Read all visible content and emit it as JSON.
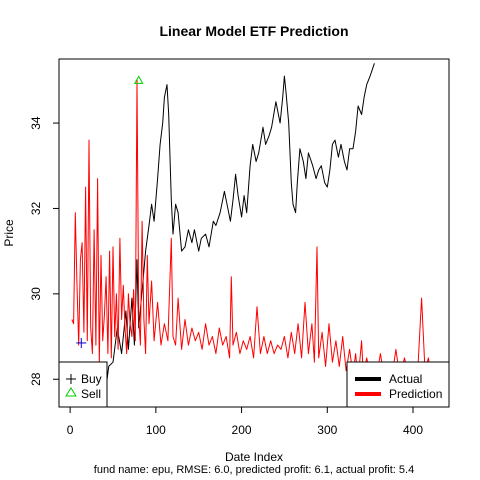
{
  "chart_data": {
    "type": "line",
    "title": "Linear Model ETF Prediction",
    "xlabel": "Date Index",
    "ylabel": "Price",
    "subtitle": "fund name: epu, RMSE: 6.0, predicted profit: 6.1, actual profit: 5.4",
    "xlim": [
      -13,
      442
    ],
    "ylim": [
      27.35,
      35.5
    ],
    "x_ticks": [
      0,
      100,
      200,
      300,
      400
    ],
    "y_ticks": [
      28,
      30,
      32,
      34
    ],
    "grid": false,
    "series": [
      {
        "name": "Actual",
        "color": "#000000",
        "points": [
          [
            0,
            27.4
          ],
          [
            10,
            27.6
          ],
          [
            20,
            27.5
          ],
          [
            25,
            27.45
          ],
          [
            30,
            27.4
          ],
          [
            35,
            27.9
          ],
          [
            40,
            27.5
          ],
          [
            45,
            28.3
          ],
          [
            50,
            28.4
          ],
          [
            55,
            29.2
          ],
          [
            60,
            28.6
          ],
          [
            65,
            29.6
          ],
          [
            68,
            28.7
          ],
          [
            72,
            29.9
          ],
          [
            75,
            28.8
          ],
          [
            78,
            30.8
          ],
          [
            80,
            29.2
          ],
          [
            85,
            30.3
          ],
          [
            88,
            31.0
          ],
          [
            92,
            31.6
          ],
          [
            95,
            32.1
          ],
          [
            98,
            31.7
          ],
          [
            102,
            32.7
          ],
          [
            105,
            33.5
          ],
          [
            108,
            34.0
          ],
          [
            110,
            34.6
          ],
          [
            113,
            34.9
          ],
          [
            115,
            34.2
          ],
          [
            118,
            32.2
          ],
          [
            120,
            31.4
          ],
          [
            123,
            32.1
          ],
          [
            126,
            31.9
          ],
          [
            130,
            31.0
          ],
          [
            134,
            31.1
          ],
          [
            138,
            31.5
          ],
          [
            142,
            31.2
          ],
          [
            145,
            31.5
          ],
          [
            150,
            31.0
          ],
          [
            153,
            31.3
          ],
          [
            158,
            31.4
          ],
          [
            162,
            31.1
          ],
          [
            167,
            31.7
          ],
          [
            170,
            31.6
          ],
          [
            175,
            31.9
          ],
          [
            180,
            32.4
          ],
          [
            183,
            32.1
          ],
          [
            187,
            31.7
          ],
          [
            190,
            32.2
          ],
          [
            193,
            32.8
          ],
          [
            196,
            32.3
          ],
          [
            200,
            31.8
          ],
          [
            203,
            32.3
          ],
          [
            206,
            31.9
          ],
          [
            210,
            33.0
          ],
          [
            213,
            33.5
          ],
          [
            217,
            33.1
          ],
          [
            220,
            33.3
          ],
          [
            225,
            33.9
          ],
          [
            228,
            33.5
          ],
          [
            232,
            33.7
          ],
          [
            235,
            33.9
          ],
          [
            240,
            34.5
          ],
          [
            243,
            34.2
          ],
          [
            245,
            34.0
          ],
          [
            248,
            34.6
          ],
          [
            250,
            35.1
          ],
          [
            252,
            34.7
          ],
          [
            255,
            34.0
          ],
          [
            258,
            32.6
          ],
          [
            260,
            32.1
          ],
          [
            263,
            31.9
          ],
          [
            265,
            32.6
          ],
          [
            268,
            33.4
          ],
          [
            272,
            33.1
          ],
          [
            275,
            32.7
          ],
          [
            278,
            33.3
          ],
          [
            283,
            33.0
          ],
          [
            287,
            32.7
          ],
          [
            290,
            32.9
          ],
          [
            293,
            33.0
          ],
          [
            297,
            32.6
          ],
          [
            300,
            32.5
          ],
          [
            303,
            32.9
          ],
          [
            306,
            33.5
          ],
          [
            309,
            33.6
          ],
          [
            313,
            33.2
          ],
          [
            316,
            33.5
          ],
          [
            320,
            33.1
          ],
          [
            323,
            32.9
          ],
          [
            326,
            33.4
          ],
          [
            330,
            33.4
          ],
          [
            333,
            33.8
          ],
          [
            336,
            34.4
          ],
          [
            340,
            34.2
          ],
          [
            343,
            34.6
          ],
          [
            346,
            34.9
          ],
          [
            350,
            35.1
          ],
          [
            355,
            35.4
          ]
        ]
      },
      {
        "name": "Prediction",
        "color": "#ff0000",
        "points": [
          [
            2,
            29.4
          ],
          [
            4,
            29.3
          ],
          [
            6,
            31.9
          ],
          [
            8,
            30.2
          ],
          [
            10,
            28.8
          ],
          [
            12,
            30.8
          ],
          [
            14,
            31.2
          ],
          [
            16,
            29.1
          ],
          [
            18,
            32.5
          ],
          [
            20,
            28.9
          ],
          [
            22,
            33.6
          ],
          [
            24,
            29.2
          ],
          [
            26,
            28.6
          ],
          [
            28,
            31.5
          ],
          [
            30,
            28.8
          ],
          [
            32,
            32.7
          ],
          [
            34,
            28.4
          ],
          [
            36,
            30.9
          ],
          [
            38,
            28.9
          ],
          [
            40,
            29.5
          ],
          [
            42,
            30.4
          ],
          [
            44,
            28.6
          ],
          [
            46,
            31.0
          ],
          [
            48,
            28.5
          ],
          [
            50,
            31.1
          ],
          [
            52,
            29.0
          ],
          [
            54,
            30.0
          ],
          [
            56,
            28.7
          ],
          [
            58,
            31.3
          ],
          [
            60,
            29.4
          ],
          [
            62,
            30.2
          ],
          [
            64,
            29.2
          ],
          [
            66,
            28.6
          ],
          [
            68,
            30.0
          ],
          [
            70,
            29.3
          ],
          [
            72,
            29.0
          ],
          [
            74,
            30.1
          ],
          [
            76,
            28.9
          ],
          [
            78,
            35.0
          ],
          [
            80,
            29.5
          ],
          [
            82,
            28.8
          ],
          [
            84,
            31.7
          ],
          [
            86,
            29.4
          ],
          [
            88,
            28.6
          ],
          [
            90,
            30.9
          ],
          [
            92,
            29.3
          ],
          [
            95,
            30.3
          ],
          [
            98,
            28.9
          ],
          [
            102,
            29.8
          ],
          [
            106,
            28.8
          ],
          [
            110,
            29.3
          ],
          [
            114,
            28.9
          ],
          [
            118,
            31.3
          ],
          [
            120,
            29.0
          ],
          [
            123,
            28.8
          ],
          [
            126,
            29.9
          ],
          [
            130,
            28.7
          ],
          [
            134,
            29.4
          ],
          [
            138,
            28.8
          ],
          [
            142,
            29.2
          ],
          [
            146,
            28.9
          ],
          [
            150,
            29.1
          ],
          [
            154,
            28.7
          ],
          [
            158,
            29.3
          ],
          [
            162,
            28.8
          ],
          [
            166,
            29.0
          ],
          [
            170,
            28.6
          ],
          [
            174,
            29.2
          ],
          [
            178,
            28.8
          ],
          [
            182,
            29.0
          ],
          [
            186,
            28.5
          ],
          [
            188,
            30.4
          ],
          [
            190,
            28.8
          ],
          [
            194,
            29.1
          ],
          [
            198,
            28.6
          ],
          [
            202,
            28.9
          ],
          [
            206,
            28.7
          ],
          [
            210,
            29.0
          ],
          [
            214,
            28.5
          ],
          [
            218,
            29.7
          ],
          [
            222,
            28.6
          ],
          [
            226,
            29.0
          ],
          [
            230,
            28.6
          ],
          [
            234,
            28.9
          ],
          [
            238,
            28.6
          ],
          [
            242,
            28.8
          ],
          [
            246,
            28.7
          ],
          [
            250,
            29.0
          ],
          [
            254,
            28.5
          ],
          [
            258,
            29.1
          ],
          [
            262,
            28.6
          ],
          [
            266,
            29.3
          ],
          [
            270,
            28.5
          ],
          [
            274,
            29.8
          ],
          [
            278,
            28.6
          ],
          [
            282,
            29.3
          ],
          [
            285,
            28.4
          ],
          [
            288,
            31.1
          ],
          [
            290,
            28.5
          ],
          [
            294,
            29.1
          ],
          [
            298,
            28.3
          ],
          [
            302,
            29.3
          ],
          [
            306,
            28.4
          ],
          [
            310,
            28.9
          ],
          [
            314,
            28.3
          ],
          [
            318,
            29.0
          ],
          [
            322,
            28.2
          ],
          [
            326,
            28.7
          ],
          [
            330,
            28.1
          ],
          [
            333,
            28.6
          ],
          [
            336,
            28.0
          ],
          [
            340,
            28.9
          ],
          [
            342,
            28.1
          ],
          [
            346,
            28.5
          ],
          [
            350,
            28.1
          ],
          [
            354,
            28.4
          ],
          [
            358,
            28.1
          ],
          [
            362,
            28.6
          ],
          [
            366,
            28.1
          ],
          [
            370,
            28.3
          ],
          [
            375,
            28.0
          ],
          [
            380,
            28.7
          ],
          [
            385,
            28.0
          ],
          [
            390,
            28.5
          ],
          [
            395,
            28.1
          ],
          [
            400,
            28.4
          ],
          [
            405,
            28.0
          ],
          [
            410,
            29.9
          ],
          [
            414,
            28.2
          ],
          [
            418,
            28.5
          ],
          [
            421,
            28.1
          ]
        ]
      }
    ],
    "buy_points": [
      [
        13,
        28.85
      ]
    ],
    "sell_points": [
      [
        80,
        35.0
      ]
    ],
    "legend_left": {
      "placement": "bottom-left",
      "items": [
        {
          "symbol": "+",
          "label": "Buy",
          "color": "#000000"
        },
        {
          "symbol": "△",
          "label": "Sell",
          "color": "#00cc00"
        }
      ]
    },
    "legend_right": {
      "placement": "bottom-right",
      "items": [
        {
          "label": "Actual",
          "color": "#000000"
        },
        {
          "label": "Prediction",
          "color": "#ff0000"
        }
      ]
    }
  }
}
